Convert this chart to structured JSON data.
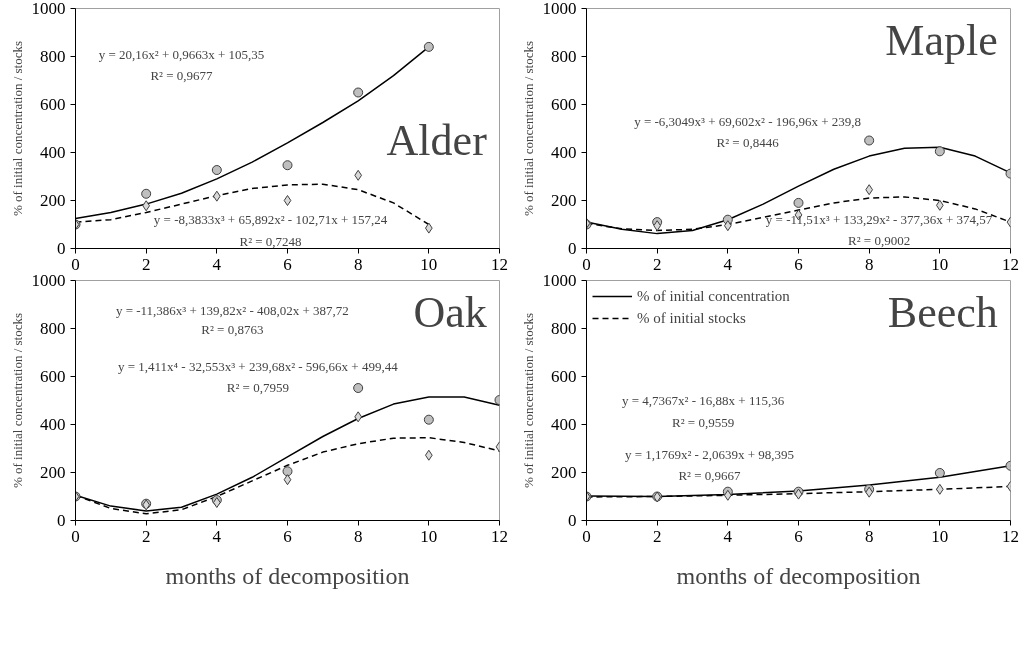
{
  "chart_data": [
    {
      "type": "scatter",
      "title": "Alder",
      "ylabel": "% of initial concentration / stocks",
      "xlim": [
        0,
        12
      ],
      "xticks": [
        0,
        2,
        4,
        6,
        8,
        10,
        12
      ],
      "ylim": [
        0,
        1000
      ],
      "yticks": [
        0,
        200,
        400,
        600,
        800,
        1000
      ],
      "grid": false,
      "legend": false,
      "tick_labels": true,
      "annotations": [
        "y = 20,16x² + 0,9663x + 105,35",
        "R² = 0,9677",
        "y = -8,3833x³ + 65,892x² - 102,71x + 157,24",
        "R² = 0,7248"
      ],
      "series": [
        {
          "type": "line",
          "line_style": "solid",
          "color": "#000000",
          "x": [
            0,
            1,
            2,
            3,
            4,
            5,
            6,
            7,
            8,
            9,
            10
          ],
          "values": [
            125,
            150,
            185,
            230,
            290,
            360,
            440,
            525,
            615,
            720,
            840
          ]
        },
        {
          "type": "line",
          "line_style": "dashed",
          "color": "#000000",
          "x": [
            0,
            1,
            2,
            3,
            4,
            5,
            6,
            7,
            8,
            9,
            10
          ],
          "values": [
            110,
            120,
            150,
            185,
            220,
            250,
            265,
            268,
            245,
            190,
            100
          ]
        },
        {
          "marker": "circle",
          "color": "#bfbfbf",
          "x": [
            0,
            2,
            4,
            6,
            8,
            10
          ],
          "values": [
            100,
            228,
            327,
            347,
            650,
            840
          ]
        },
        {
          "marker": "diamond",
          "color": "#d9d9d9",
          "x": [
            0,
            2,
            4,
            6,
            8,
            10
          ],
          "values": [
            100,
            178,
            218,
            200,
            305,
            85
          ]
        }
      ]
    },
    {
      "type": "scatter",
      "title": "Maple",
      "ylabel": "% of initial concentration / stocks",
      "xlim": [
        0,
        12
      ],
      "xticks": [
        0,
        2,
        4,
        6,
        8,
        10,
        12
      ],
      "ylim": [
        0,
        1000
      ],
      "yticks": [
        0,
        200,
        400,
        600,
        800,
        1000
      ],
      "grid": false,
      "legend": false,
      "annotations": [
        "y = -6,3049x³ + 69,602x² - 196,96x + 239,8",
        "R² = 0,8446",
        "y = -11,51x³ + 133,29x² - 377,36x + 374,57",
        "R² = 0,9002"
      ],
      "series": [
        {
          "type": "line",
          "line_style": "solid",
          "color": "#000000",
          "x": [
            0,
            1,
            2,
            3,
            4,
            5,
            6,
            7,
            8,
            9,
            10,
            11,
            12
          ],
          "values": [
            110,
            80,
            62,
            75,
            120,
            185,
            260,
            330,
            385,
            418,
            422,
            385,
            315
          ]
        },
        {
          "type": "line",
          "line_style": "dashed",
          "color": "#000000",
          "x": [
            0,
            1,
            2,
            3,
            4,
            5,
            6,
            7,
            8,
            9,
            10,
            11,
            12
          ],
          "values": [
            105,
            82,
            75,
            80,
            100,
            130,
            160,
            190,
            210,
            215,
            200,
            165,
            110
          ]
        },
        {
          "marker": "circle",
          "color": "#bfbfbf",
          "x": [
            0,
            2,
            4,
            6,
            8,
            10,
            12
          ],
          "values": [
            100,
            110,
            120,
            190,
            450,
            405,
            312
          ]
        },
        {
          "marker": "diamond",
          "color": "#d9d9d9",
          "x": [
            0,
            2,
            4,
            6,
            8,
            10,
            12
          ],
          "values": [
            105,
            95,
            95,
            140,
            245,
            180,
            110
          ]
        }
      ]
    },
    {
      "type": "scatter",
      "title": "Oak",
      "xlabel": "months of decomposition",
      "ylabel": "% of initial concentration / stocks",
      "xlim": [
        0,
        12
      ],
      "xticks": [
        0,
        2,
        4,
        6,
        8,
        10,
        12
      ],
      "ylim": [
        0,
        1000
      ],
      "yticks": [
        0,
        200,
        400,
        600,
        800,
        1000
      ],
      "grid": false,
      "legend": false,
      "annotations": [
        "y = -11,386x³ + 139,82x² - 408,02x + 387,72",
        "R² = 0,8763",
        "y = 1,411x⁴ - 32,553x³ + 239,68x² - 596,66x + 499,44",
        "R² = 0,7959"
      ],
      "series": [
        {
          "type": "line",
          "line_style": "solid",
          "color": "#000000",
          "x": [
            0,
            1,
            2,
            3,
            4,
            5,
            6,
            7,
            8,
            9,
            10,
            11,
            12
          ],
          "values": [
            105,
            60,
            40,
            55,
            110,
            180,
            265,
            350,
            425,
            485,
            515,
            515,
            480
          ]
        },
        {
          "type": "line",
          "line_style": "dashed",
          "color": "#000000",
          "x": [
            0,
            1,
            2,
            3,
            4,
            5,
            6,
            7,
            8,
            9,
            10,
            11,
            12
          ],
          "values": [
            105,
            50,
            28,
            45,
            100,
            165,
            230,
            285,
            320,
            343,
            345,
            325,
            290
          ]
        },
        {
          "marker": "circle",
          "color": "#bfbfbf",
          "x": [
            0,
            2,
            4,
            6,
            8,
            10,
            12
          ],
          "values": [
            100,
            70,
            85,
            205,
            552,
            420,
            502
          ]
        },
        {
          "marker": "diamond",
          "color": "#d9d9d9",
          "x": [
            0,
            2,
            4,
            6,
            8,
            10,
            12
          ],
          "values": [
            100,
            65,
            75,
            170,
            432,
            272,
            307
          ]
        }
      ]
    },
    {
      "type": "scatter",
      "title": "Beech",
      "xlabel": "months of decomposition",
      "ylabel": "% of initial concentration / stocks",
      "xlim": [
        0,
        12
      ],
      "xticks": [
        0,
        2,
        4,
        6,
        8,
        10,
        12
      ],
      "ylim": [
        0,
        1000
      ],
      "yticks": [
        0,
        200,
        400,
        600,
        800,
        1000
      ],
      "grid": false,
      "legend": "top left",
      "annotations": [
        "y = 4,7367x² - 16,88x + 115,36",
        "R² = 0,9559",
        "y = 1,1769x² - 2,0639x + 98,395",
        "R² = 0,9667"
      ],
      "series": [
        {
          "name": "% of initial concentration",
          "type": "line",
          "line_style": "solid",
          "color": "#000000",
          "x": [
            0,
            2,
            4,
            6,
            8,
            10,
            12
          ],
          "values": [
            102,
            100,
            108,
            123,
            148,
            180,
            228
          ]
        },
        {
          "name": "% of initial stocks",
          "type": "line",
          "line_style": "dashed",
          "color": "#000000",
          "x": [
            0,
            2,
            4,
            6,
            8,
            10,
            12
          ],
          "values": [
            98,
            100,
            105,
            112,
            120,
            130,
            142
          ]
        },
        {
          "marker": "circle",
          "color": "#bfbfbf",
          "x": [
            0,
            2,
            4,
            6,
            8,
            10,
            12
          ],
          "values": [
            100,
            100,
            120,
            120,
            130,
            198,
            228
          ]
        },
        {
          "marker": "diamond",
          "color": "#d9d9d9",
          "x": [
            0,
            2,
            4,
            6,
            8,
            10,
            12
          ],
          "values": [
            100,
            98,
            105,
            110,
            118,
            130,
            142
          ]
        }
      ]
    }
  ]
}
